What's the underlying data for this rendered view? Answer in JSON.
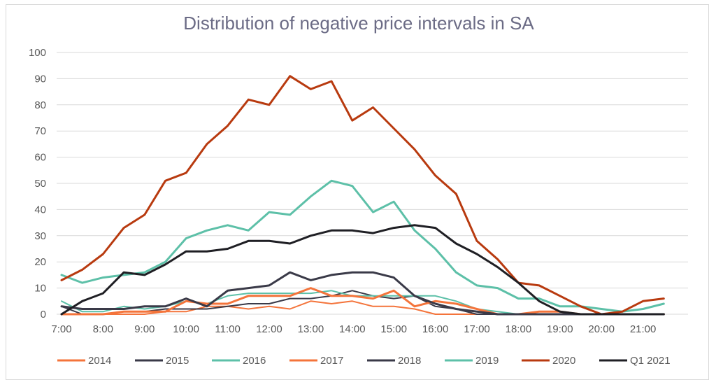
{
  "chart_data": {
    "type": "line",
    "title": "Distribution of negative price intervals in SA",
    "xlabel": "",
    "ylabel": "",
    "ylim": [
      0,
      100
    ],
    "yticks": [
      0,
      10,
      20,
      30,
      40,
      50,
      60,
      70,
      80,
      90,
      100
    ],
    "x": [
      "7:00",
      "7:30",
      "8:00",
      "8:30",
      "9:00",
      "9:30",
      "10:00",
      "10:30",
      "11:00",
      "11:30",
      "12:00",
      "12:30",
      "13:00",
      "13:30",
      "14:00",
      "14:30",
      "15:00",
      "15:30",
      "16:00",
      "16:30",
      "17:00",
      "17:30",
      "18:00",
      "18:30",
      "19:00",
      "19:30",
      "20:00",
      "20:30",
      "21:00",
      "21:30"
    ],
    "xtick_labels": [
      "7:00",
      "8:00",
      "9:00",
      "10:00",
      "11:00",
      "12:00",
      "13:00",
      "14:00",
      "15:00",
      "16:00",
      "17:00",
      "18:00",
      "19:00",
      "20:00",
      "21:00"
    ],
    "grid": "horizontal",
    "legend_position": "bottom",
    "series": [
      {
        "name": "2014",
        "color": "#f4743b",
        "width": 2,
        "values": [
          0,
          0,
          0,
          0,
          0,
          1,
          1,
          3,
          3,
          2,
          3,
          2,
          5,
          4,
          5,
          3,
          3,
          2,
          0,
          0,
          0,
          0,
          0,
          0,
          0,
          0,
          0,
          0,
          0,
          0
        ]
      },
      {
        "name": "2015",
        "color": "#3a3a48",
        "width": 2,
        "values": [
          3,
          0,
          0,
          1,
          1,
          2,
          2,
          2,
          3,
          4,
          4,
          6,
          6,
          7,
          9,
          7,
          6,
          7,
          3,
          2,
          0,
          0,
          0,
          0,
          0,
          0,
          0,
          0,
          0,
          0
        ]
      },
      {
        "name": "2016",
        "color": "#5dc0a8",
        "width": 2,
        "values": [
          5,
          1,
          1,
          3,
          2,
          3,
          5,
          4,
          7,
          8,
          8,
          8,
          8,
          9,
          7,
          7,
          7,
          7,
          7,
          5,
          2,
          1,
          0,
          0,
          0,
          0,
          0,
          0,
          0,
          0
        ]
      },
      {
        "name": "2017",
        "color": "#f4743b",
        "width": 3,
        "values": [
          0,
          0,
          0,
          1,
          1,
          1,
          5,
          4,
          4,
          7,
          7,
          7,
          10,
          7,
          7,
          6,
          9,
          3,
          5,
          4,
          2,
          0,
          0,
          1,
          1,
          0,
          0,
          0,
          0,
          0
        ]
      },
      {
        "name": "2018",
        "color": "#3a3a48",
        "width": 3,
        "values": [
          3,
          2,
          2,
          2,
          3,
          3,
          6,
          3,
          9,
          10,
          11,
          16,
          13,
          15,
          16,
          16,
          14,
          7,
          4,
          2,
          1,
          0,
          0,
          0,
          0,
          0,
          0,
          0,
          0,
          0
        ]
      },
      {
        "name": "2019",
        "color": "#5dc0a8",
        "width": 3,
        "values": [
          15,
          12,
          14,
          15,
          16,
          20,
          29,
          32,
          34,
          32,
          39,
          38,
          45,
          51,
          49,
          39,
          43,
          32,
          25,
          16,
          11,
          10,
          6,
          6,
          3,
          3,
          2,
          1,
          2,
          4
        ]
      },
      {
        "name": "2020",
        "color": "#b83a0f",
        "width": 3,
        "values": [
          13,
          17,
          23,
          33,
          38,
          51,
          54,
          65,
          72,
          82,
          80,
          91,
          86,
          89,
          74,
          79,
          71,
          63,
          53,
          46,
          28,
          21,
          12,
          11,
          7,
          3,
          0,
          1,
          5,
          6
        ]
      },
      {
        "name": "Q1 2021",
        "color": "#1f1f24",
        "width": 3,
        "values": [
          0,
          5,
          8,
          16,
          15,
          19,
          24,
          24,
          25,
          28,
          28,
          27,
          30,
          32,
          32,
          31,
          33,
          34,
          33,
          27,
          23,
          18,
          12,
          5,
          1,
          0,
          0,
          0,
          0,
          0
        ]
      }
    ]
  }
}
